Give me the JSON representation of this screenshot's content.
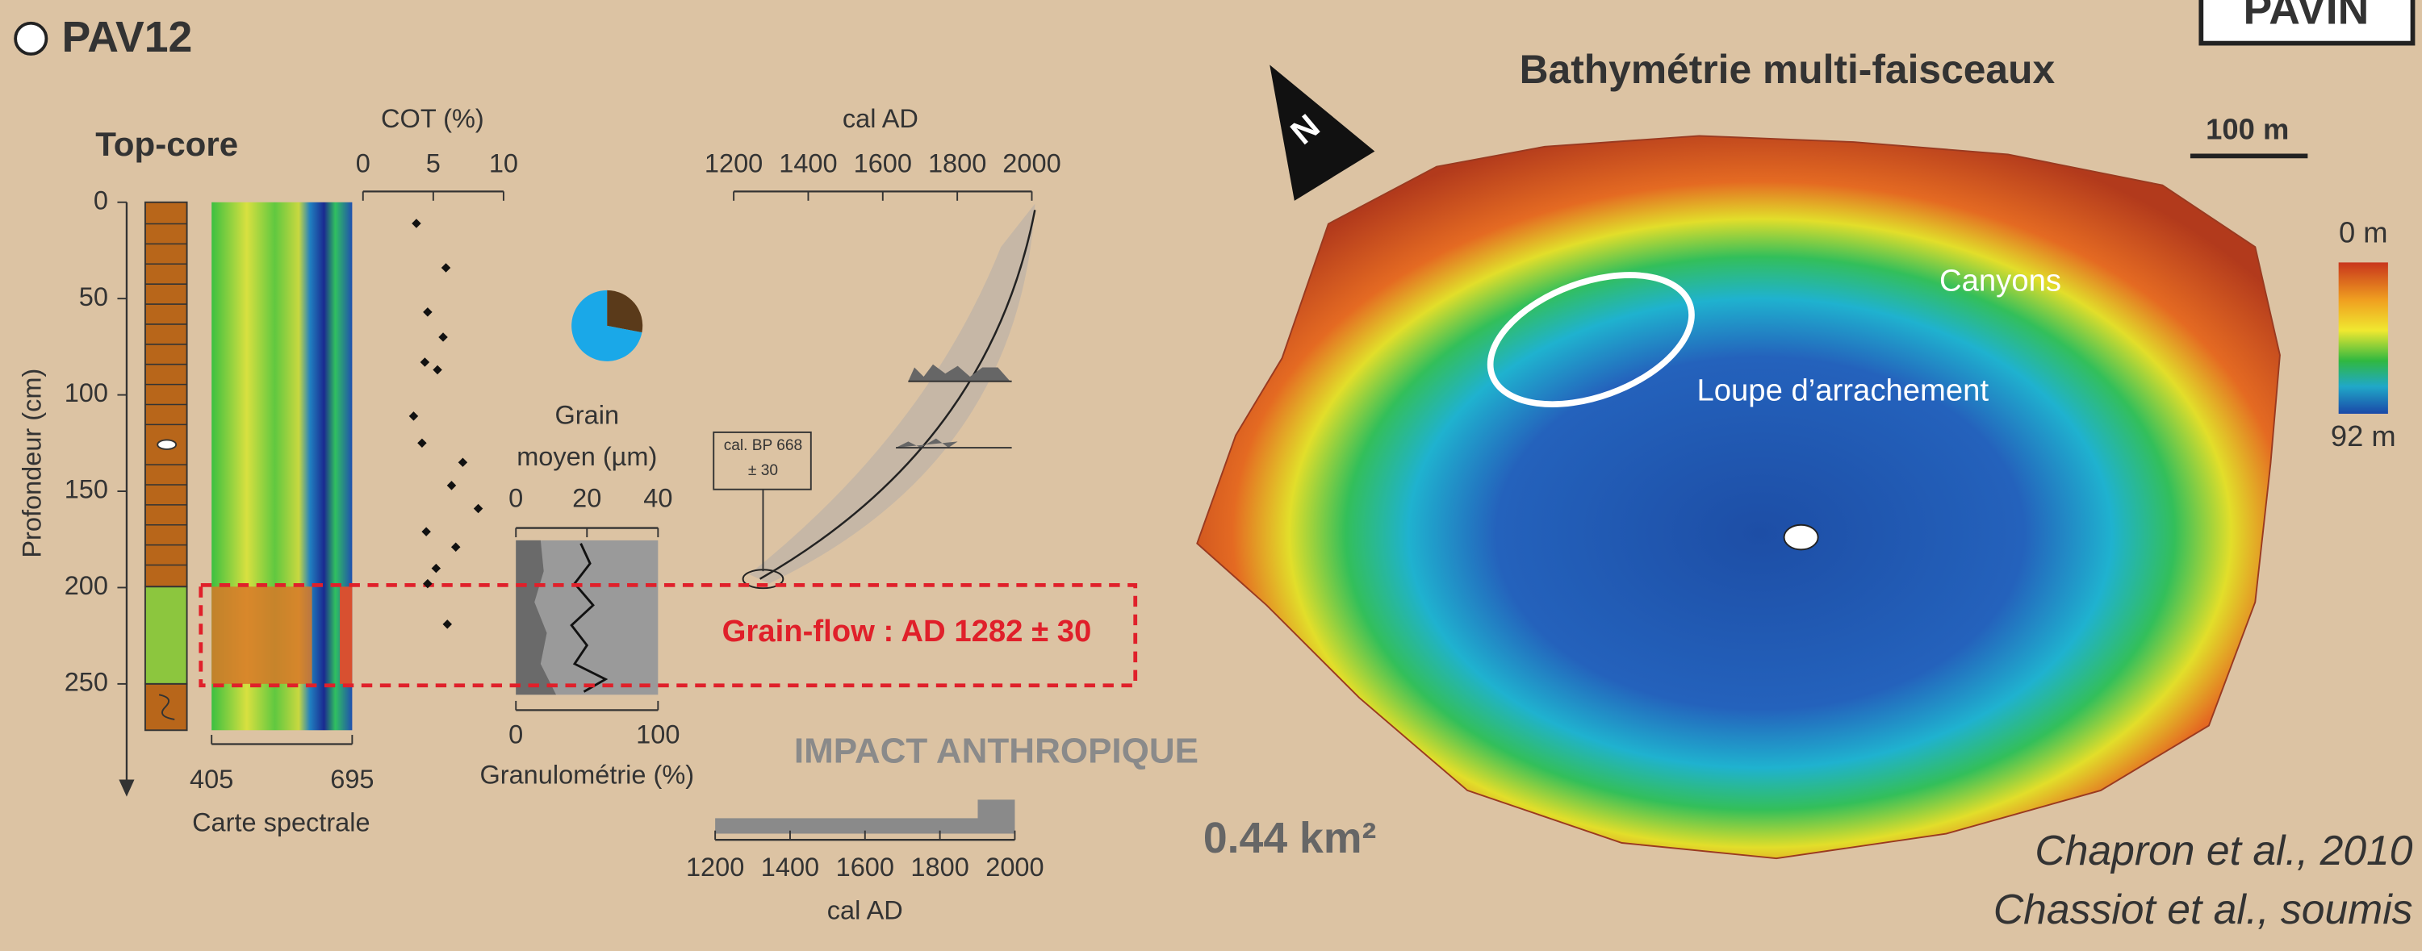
{
  "header": {
    "site": "PAV12",
    "lake": "PAVIN"
  },
  "core": {
    "title": "Top-core",
    "depth_axis": {
      "label": "Profondeur (cm)",
      "lim": [
        0,
        250
      ],
      "ticks": [
        0,
        50,
        100,
        150,
        200,
        250
      ]
    },
    "spectral": {
      "label": "Carte spectrale",
      "ticks": [
        405,
        695
      ]
    }
  },
  "cot": {
    "label": "COT (%)",
    "lim": [
      0,
      10
    ],
    "ticks": [
      0,
      5,
      10
    ],
    "depth": [
      11,
      34,
      57,
      70,
      83,
      87,
      111,
      125,
      135,
      147,
      159,
      171,
      179,
      190,
      198,
      219
    ],
    "values": [
      3.8,
      5.9,
      4.6,
      5.7,
      4.4,
      5.3,
      3.6,
      4.2,
      7.1,
      6.3,
      8.2,
      4.5,
      6.6,
      5.2,
      4.6,
      6.0
    ]
  },
  "pie": {
    "values": [
      28,
      72
    ],
    "colors": [
      "#5a3a1a",
      "#1aa8e8"
    ]
  },
  "grain": {
    "label_lines": [
      "Grain",
      "moyen (µm)"
    ],
    "lim": [
      0,
      40
    ],
    "ticks": [
      0,
      20,
      40
    ]
  },
  "granulo": {
    "label": "Granulométrie (%)",
    "lim": [
      0,
      100
    ],
    "ticks": [
      0,
      100
    ]
  },
  "age_model": {
    "label": "cal AD",
    "lim": [
      1200,
      2000
    ],
    "ticks": [
      1200,
      1400,
      1600,
      1800,
      2000
    ],
    "date_lines": [
      "cal. BP 668",
      "± 30"
    ]
  },
  "event": "Grain-flow : AD 1282 ± 30",
  "impact": {
    "title": "IMPACT ANTHROPIQUE",
    "label": "cal AD",
    "lim": [
      1200,
      2000
    ],
    "ticks": [
      1200,
      1400,
      1600,
      1800,
      2000
    ]
  },
  "map": {
    "title": "Bathymétrie multi-faisceaux",
    "area": "0.44 km²",
    "scale": "100 m",
    "north": "N",
    "depth_top": "0 m",
    "depth_bottom": "92 m",
    "annotations": [
      "Canyons",
      "Loupe d’arrachement"
    ]
  },
  "credits": [
    "Chapron et al., 2010",
    "Chassiot et al., soumis"
  ]
}
